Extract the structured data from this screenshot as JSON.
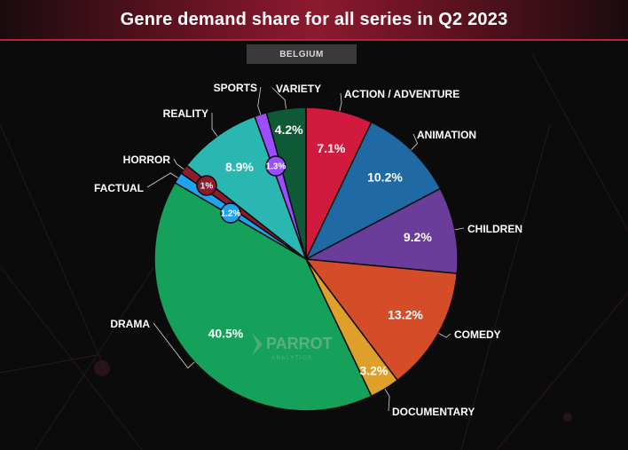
{
  "header": {
    "title": "Genre demand share for all series in Q2 2023"
  },
  "region": {
    "label": "BELGIUM"
  },
  "watermark": {
    "name": "PARROT",
    "sub": "ANALYTICS"
  },
  "colors": {
    "background": "#0b0b0c",
    "header_accent": "#b3243d"
  },
  "chart_data": {
    "type": "pie",
    "title": "Genre demand share for all series in Q2 2023",
    "slices": [
      {
        "name": "ACTION / ADVENTURE",
        "value": 7.1,
        "label": "7.1%",
        "color": "#d21a3f"
      },
      {
        "name": "ANIMATION",
        "value": 10.2,
        "label": "10.2%",
        "color": "#1f6aa5"
      },
      {
        "name": "CHILDREN",
        "value": 9.2,
        "label": "9.2%",
        "color": "#6a3d9a"
      },
      {
        "name": "COMEDY",
        "value": 13.2,
        "label": "13.2%",
        "color": "#d44d28"
      },
      {
        "name": "DOCUMENTARY",
        "value": 3.2,
        "label": "3.2%",
        "color": "#dea02a"
      },
      {
        "name": "DRAMA",
        "value": 40.5,
        "label": "40.5%",
        "color": "#16a15b"
      },
      {
        "name": "FACTUAL",
        "value": 1.2,
        "label": "1.2%",
        "color": "#1fa3ee"
      },
      {
        "name": "HORROR",
        "value": 1.0,
        "label": "1%",
        "color": "#8e1b2c"
      },
      {
        "name": "REALITY",
        "value": 8.9,
        "label": "8.9%",
        "color": "#2ab7b2"
      },
      {
        "name": "SPORTS",
        "value": 1.3,
        "label": "1.3%",
        "color": "#9b4dff"
      },
      {
        "name": "VARIETY",
        "value": 4.2,
        "label": "4.2%",
        "color": "#0e5a37"
      }
    ]
  }
}
